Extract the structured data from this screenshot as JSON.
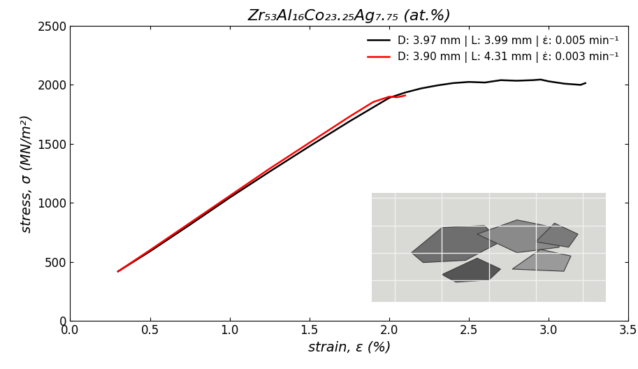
{
  "chart_data": {
    "type": "line",
    "title": "Zr₅₃Al₁₆Co₂₃.₂₅Ag₇.₇₅ (at.%)",
    "x_label": "strain, ε (%)",
    "y_label": "stress, σ (MN/m²)",
    "xlim": [
      0,
      3.5
    ],
    "ylim": [
      0,
      2500
    ],
    "xticks": [
      {
        "value": 0,
        "label": "0.0"
      },
      0.5,
      {
        "value": 1,
        "label": "1.0"
      },
      1.5,
      {
        "value": 2,
        "label": "2.0"
      },
      2.5,
      {
        "value": 3,
        "label": "3.0"
      },
      3.5
    ],
    "yticks": [
      0,
      500,
      1000,
      1500,
      2000,
      2500
    ],
    "grid": false,
    "legend": "upper right",
    "series": [
      {
        "name": "D: 3.97 mm | L: 3.99 mm | ε̇: 0.005 min⁻¹",
        "color": "#000000",
        "x": [
          0.3,
          0.5,
          0.75,
          1.0,
          1.25,
          1.5,
          1.75,
          2.0,
          2.1,
          2.2,
          2.3,
          2.4,
          2.5,
          2.6,
          2.7,
          2.8,
          2.9,
          2.95,
          3.0,
          3.1,
          3.2,
          3.23
        ],
        "values": [
          420,
          590,
          815,
          1045,
          1265,
          1480,
          1690,
          1890,
          1935,
          1970,
          1995,
          2015,
          2025,
          2020,
          2040,
          2035,
          2040,
          2045,
          2030,
          2010,
          2000,
          2015
        ]
      },
      {
        "name": "D: 3.90 mm | L: 4.31 mm | ε̇: 0.003 min⁻¹",
        "color": "#ff0000",
        "x": [
          0.3,
          0.5,
          0.75,
          1.0,
          1.25,
          1.5,
          1.75,
          1.9,
          2.0,
          2.05,
          2.1
        ],
        "values": [
          420,
          600,
          830,
          1060,
          1290,
          1510,
          1730,
          1855,
          1900,
          1895,
          1910
        ]
      }
    ]
  }
}
